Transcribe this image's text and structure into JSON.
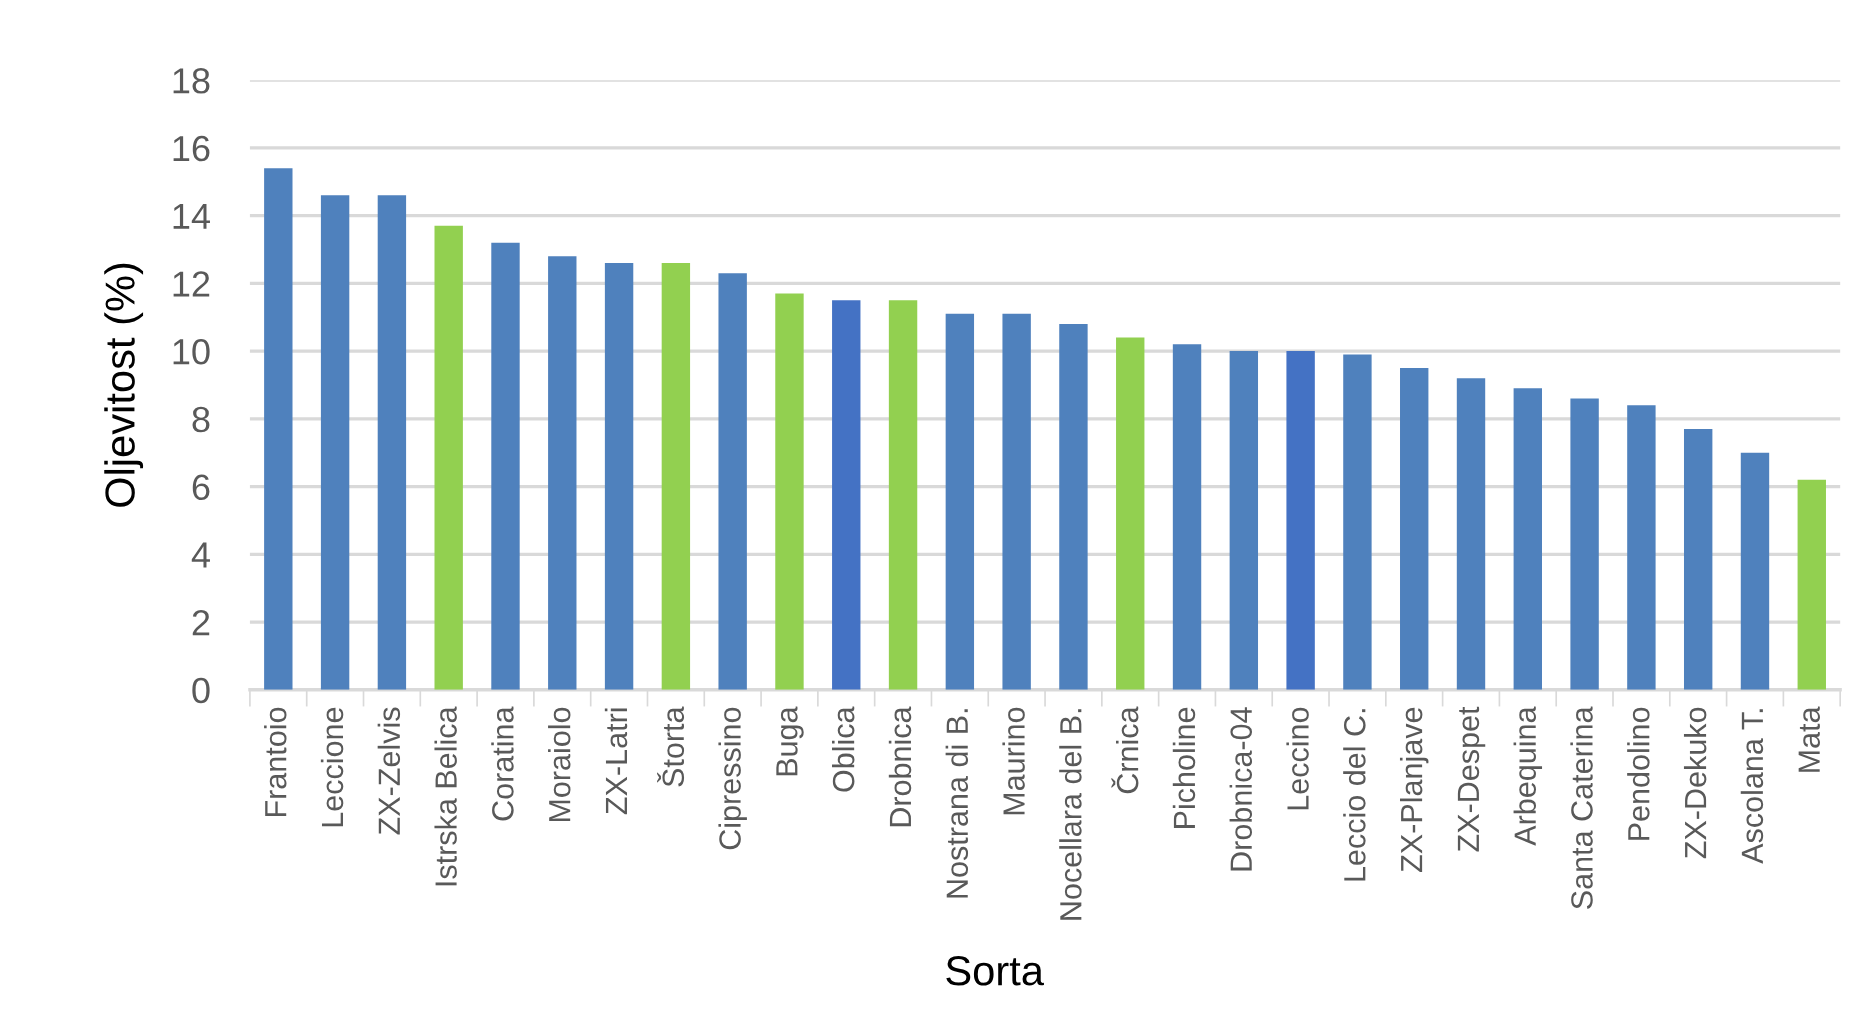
{
  "chart_data": {
    "type": "bar",
    "xlabel": "Sorta",
    "ylabel": "Oljevitost (%)",
    "categories": [
      "Frantoio",
      "Leccione",
      "ZX-Zelvis",
      "Istrska Belica",
      "Coratina",
      "Moraiolo",
      "ZX-Latri",
      "Štorta",
      "Cipressino",
      "Buga",
      "Oblica",
      "Drobnica",
      "Nostrana di B.",
      "Maurino",
      "Nocellara del B.",
      "Črnica",
      "Picholine",
      "Drobnica-04",
      "Leccino",
      "Leccio del C.",
      "ZX-Planjave",
      "ZX-Despet",
      "Arbequina",
      "Santa Caterina",
      "Pendolino",
      "ZX-Dekuko",
      "Ascolana T.",
      "Mata"
    ],
    "values": [
      15.4,
      14.6,
      14.6,
      13.7,
      13.2,
      12.8,
      12.6,
      12.6,
      12.3,
      11.7,
      11.5,
      11.5,
      11.1,
      11.1,
      10.8,
      10.4,
      10.2,
      10.0,
      10.0,
      9.9,
      9.5,
      9.2,
      8.9,
      8.6,
      8.4,
      7.7,
      7.0,
      6.2
    ],
    "colors": [
      "#4f81bd",
      "#4f81bd",
      "#4f81bd",
      "#92d050",
      "#4f81bd",
      "#4f81bd",
      "#4f81bd",
      "#92d050",
      "#4f81bd",
      "#92d050",
      "#4472c4",
      "#92d050",
      "#4f81bd",
      "#4f81bd",
      "#4f81bd",
      "#92d050",
      "#4f81bd",
      "#4f81bd",
      "#4472c4",
      "#4f81bd",
      "#4f81bd",
      "#4f81bd",
      "#4f81bd",
      "#4f81bd",
      "#4f81bd",
      "#4f81bd",
      "#4f81bd",
      "#92d050"
    ],
    "ylim": [
      0,
      18
    ],
    "yticks": [
      0,
      2,
      4,
      6,
      8,
      10,
      12,
      14,
      16,
      18
    ],
    "grid": "y"
  }
}
